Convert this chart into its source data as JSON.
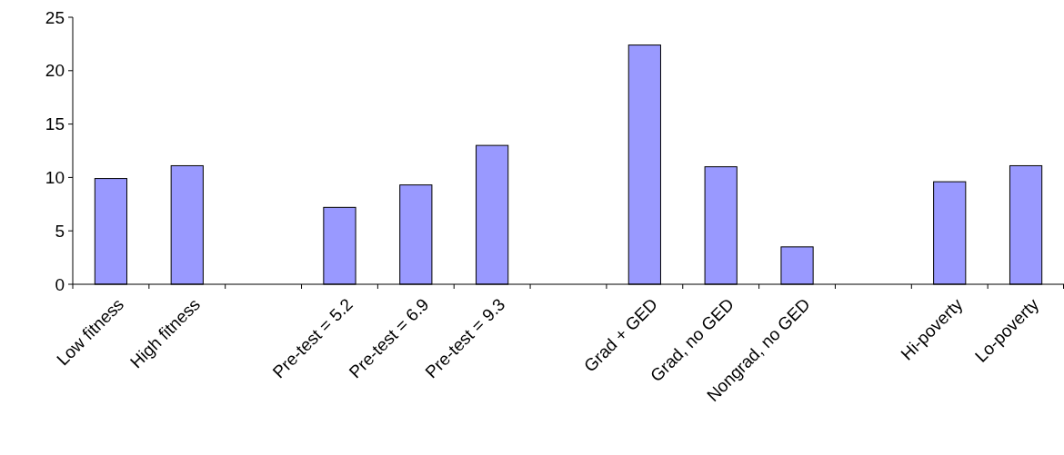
{
  "chart_data": {
    "type": "bar",
    "categories": [
      "Low fitness",
      "High fitness",
      null,
      "Pre-test = 5.2",
      "Pre-test = 6.9",
      "Pre-test = 9.3",
      null,
      "Grad + GED",
      "Grad, no GED",
      "Nongrad, no GED",
      null,
      "Hi-poverty",
      "Lo-poverty"
    ],
    "values": [
      9.9,
      11.1,
      null,
      7.2,
      9.3,
      13.0,
      null,
      22.4,
      11.0,
      3.5,
      null,
      9.6,
      11.1
    ],
    "color": "#9999ff",
    "ylim": [
      0,
      25
    ],
    "yticks": [
      0,
      5,
      10,
      15,
      20,
      25
    ]
  }
}
